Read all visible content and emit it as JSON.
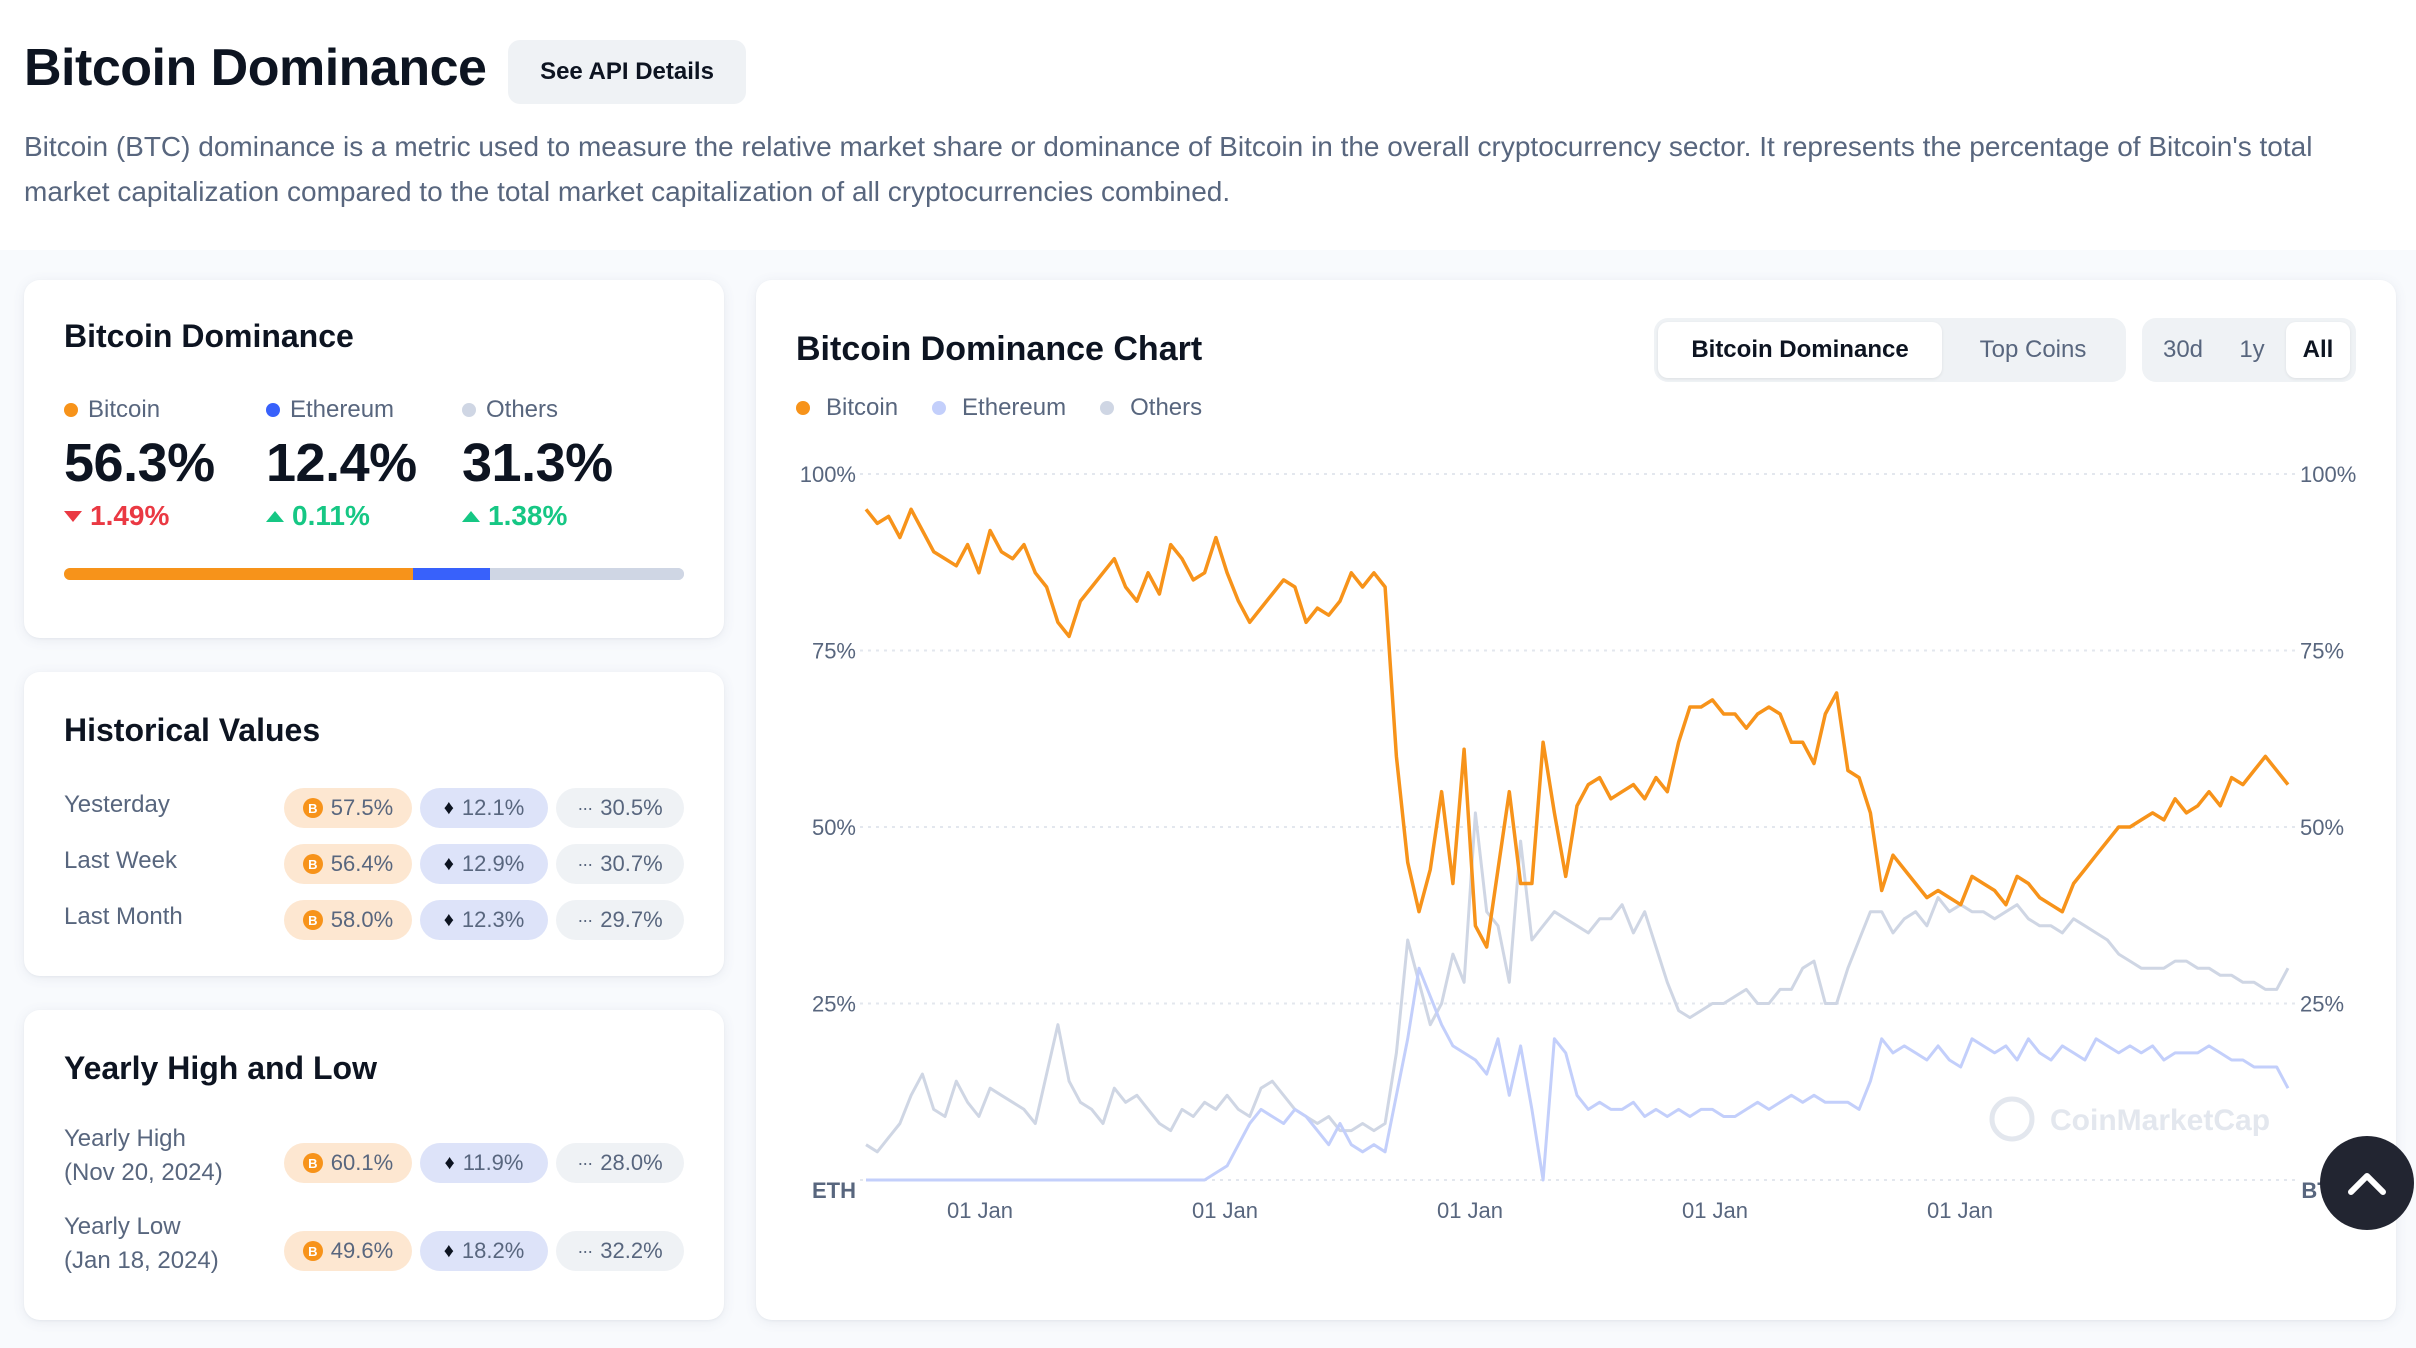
{
  "header": {
    "title": "Bitcoin Dominance",
    "api_button": "See API Details",
    "description": "Bitcoin (BTC) dominance is a metric used to measure the relative market share or dominance of Bitcoin in the overall cryptocurrency sector. It represents the percentage of Bitcoin's total market capitalization compared to the total market capitalization of all cryptocurrencies combined."
  },
  "colors": {
    "bitcoin": "#f7931a",
    "ethereum": "#3861fb",
    "ethereum_line": "#c3cffb",
    "others": "#cfd6e4",
    "up": "#16c784",
    "down": "#ea3943"
  },
  "dominance_card": {
    "title": "Bitcoin Dominance",
    "metrics": [
      {
        "label": "Bitcoin",
        "value": "56.3%",
        "change": "1.49%",
        "direction": "down",
        "share": 56.3
      },
      {
        "label": "Ethereum",
        "value": "12.4%",
        "change": "0.11%",
        "direction": "up",
        "share": 12.4
      },
      {
        "label": "Others",
        "value": "31.3%",
        "change": "1.38%",
        "direction": "up",
        "share": 31.3
      }
    ]
  },
  "historical": {
    "title": "Historical Values",
    "rows": [
      {
        "label": "Yesterday",
        "btc": "57.5%",
        "eth": "12.1%",
        "others": "30.5%"
      },
      {
        "label": "Last Week",
        "btc": "56.4%",
        "eth": "12.9%",
        "others": "30.7%"
      },
      {
        "label": "Last Month",
        "btc": "58.0%",
        "eth": "12.3%",
        "others": "29.7%"
      }
    ]
  },
  "yearly": {
    "title": "Yearly High and Low",
    "rows": [
      {
        "label": "Yearly High",
        "date": "(Nov 20, 2024)",
        "btc": "60.1%",
        "eth": "11.9%",
        "others": "28.0%"
      },
      {
        "label": "Yearly Low",
        "date": "(Jan 18, 2024)",
        "btc": "49.6%",
        "eth": "18.2%",
        "others": "32.2%"
      }
    ]
  },
  "chart": {
    "title": "Bitcoin Dominance Chart",
    "tabs": [
      "Bitcoin Dominance",
      "Top Coins"
    ],
    "active_tab": "Bitcoin Dominance",
    "ranges": [
      "30d",
      "1y",
      "All"
    ],
    "active_range": "All",
    "legend": [
      "Bitcoin",
      "Ethereum",
      "Others"
    ],
    "watermark": "CoinMarketCap",
    "left_axis_end": "ETH",
    "right_axis_end": "BTC",
    "scroll_top_icon": "chevron-up-icon"
  },
  "chart_data": {
    "type": "line",
    "ylim": [
      0,
      100
    ],
    "yticks": [
      "100%",
      "75%",
      "50%",
      "25%"
    ],
    "xticks": [
      "01 Jan",
      "01 Jan",
      "01 Jan",
      "01 Jan",
      "01 Jan"
    ],
    "grid": true,
    "legend_position": "top-left",
    "series": [
      {
        "name": "Bitcoin",
        "color": "#f7931a",
        "values": [
          95,
          93,
          94,
          91,
          95,
          92,
          89,
          88,
          87,
          90,
          86,
          92,
          89,
          88,
          90,
          86,
          84,
          79,
          77,
          82,
          84,
          86,
          88,
          84,
          82,
          86,
          83,
          90,
          88,
          85,
          86,
          91,
          86,
          82,
          79,
          81,
          83,
          85,
          84,
          79,
          81,
          80,
          82,
          86,
          84,
          86,
          84,
          60,
          45,
          38,
          44,
          55,
          42,
          61,
          36,
          33,
          44,
          55,
          42,
          42,
          62,
          52,
          43,
          53,
          56,
          57,
          54,
          55,
          56,
          54,
          57,
          55,
          62,
          67,
          67,
          68,
          66,
          66,
          64,
          66,
          67,
          66,
          62,
          62,
          59,
          66,
          69,
          58,
          57,
          52,
          41,
          46,
          44,
          42,
          40,
          41,
          40,
          39,
          43,
          42,
          41,
          39,
          43,
          42,
          40,
          39,
          38,
          42,
          44,
          46,
          48,
          50,
          50,
          51,
          52,
          51,
          54,
          52,
          53,
          55,
          53,
          57,
          56,
          58,
          60,
          58,
          56
        ]
      },
      {
        "name": "Ethereum",
        "color": "#c3cffb",
        "values": [
          0,
          0,
          0,
          0,
          0,
          0,
          0,
          0,
          0,
          0,
          0,
          0,
          0,
          0,
          0,
          0,
          0,
          0,
          0,
          0,
          0,
          0,
          0,
          0,
          0,
          0,
          0,
          0,
          0,
          0,
          0,
          1,
          2,
          5,
          8,
          10,
          9,
          8,
          10,
          9,
          7,
          5,
          8,
          5,
          4,
          5,
          4,
          12,
          20,
          30,
          26,
          22,
          19,
          18,
          17,
          15,
          20,
          12,
          19,
          10,
          0,
          20,
          18,
          12,
          10,
          11,
          10,
          10,
          11,
          9,
          10,
          9,
          10,
          9,
          10,
          10,
          9,
          9,
          10,
          11,
          10,
          11,
          12,
          11,
          12,
          11,
          11,
          11,
          10,
          14,
          20,
          18,
          19,
          18,
          17,
          19,
          17,
          16,
          20,
          19,
          18,
          19,
          17,
          20,
          18,
          17,
          19,
          18,
          17,
          20,
          19,
          18,
          19,
          18,
          19,
          17,
          18,
          18,
          18,
          19,
          18,
          17,
          17,
          16,
          16,
          16,
          13
        ]
      },
      {
        "name": "Others",
        "color": "#cfd6e4",
        "values": [
          5,
          4,
          6,
          8,
          12,
          15,
          10,
          9,
          14,
          11,
          9,
          13,
          12,
          11,
          10,
          8,
          15,
          22,
          14,
          11,
          10,
          8,
          13,
          11,
          12,
          10,
          8,
          7,
          10,
          9,
          11,
          10,
          12,
          10,
          9,
          13,
          14,
          12,
          10,
          9,
          8,
          9,
          7,
          7,
          8,
          7,
          8,
          18,
          34,
          28,
          22,
          25,
          32,
          28,
          52,
          38,
          36,
          28,
          48,
          34,
          36,
          38,
          37,
          36,
          35,
          37,
          37,
          39,
          35,
          38,
          33,
          28,
          24,
          23,
          24,
          25,
          25,
          26,
          27,
          25,
          25,
          27,
          27,
          30,
          31,
          25,
          25,
          30,
          34,
          38,
          38,
          35,
          37,
          38,
          36,
          40,
          38,
          39,
          38,
          38,
          37,
          38,
          39,
          37,
          36,
          36,
          35,
          37,
          36,
          35,
          34,
          32,
          31,
          30,
          30,
          30,
          31,
          31,
          30,
          30,
          29,
          29,
          28,
          28,
          27,
          27,
          30
        ]
      }
    ]
  }
}
